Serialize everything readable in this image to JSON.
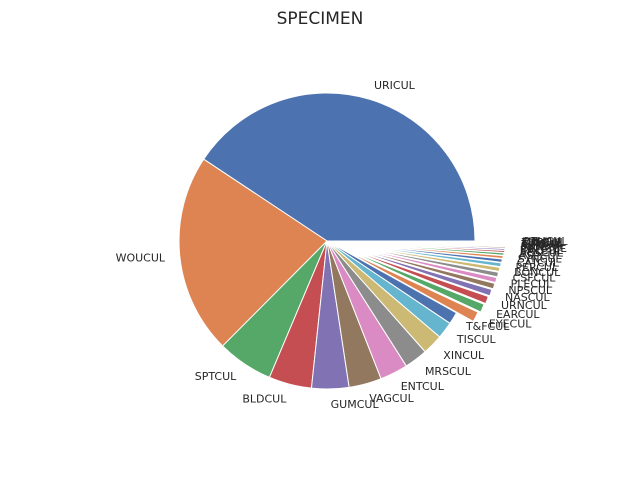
{
  "chart_data": {
    "type": "pie",
    "title": "SPECIMEN",
    "start_angle": 0,
    "direction": "counterclockwise",
    "explode_small_slices": true,
    "slices": [
      {
        "label": "URICUL",
        "value": 40.0,
        "color": "#4c72b0"
      },
      {
        "label": "WOUCUL",
        "value": 21.5,
        "color": "#dd8452"
      },
      {
        "label": "SPTCUL",
        "value": 6.0,
        "color": "#55a868"
      },
      {
        "label": "BLDCUL",
        "value": 4.6,
        "color": "#c44e52"
      },
      {
        "label": "GUMCUL",
        "value": 4.0,
        "color": "#8172b3"
      },
      {
        "label": "VAGCUL",
        "value": 3.5,
        "color": "#937860"
      },
      {
        "label": "ENTCUL",
        "value": 3.0,
        "color": "#da8bc3"
      },
      {
        "label": "MRSCUL",
        "value": 2.5,
        "color": "#8c8c8c"
      },
      {
        "label": "XINCUL",
        "value": 2.2,
        "color": "#ccb974"
      },
      {
        "label": "TISCUL",
        "value": 1.8,
        "color": "#64b5cd"
      },
      {
        "label": "T&FCUL",
        "value": 1.3,
        "color": "#4c72b0"
      },
      {
        "label": "EYECUL",
        "value": 1.1,
        "color": "#dd8452"
      },
      {
        "label": "EARCUL",
        "value": 0.9,
        "color": "#55a868"
      },
      {
        "label": "URNCUL",
        "value": 0.8,
        "color": "#c44e52"
      },
      {
        "label": "NASCUL",
        "value": 0.7,
        "color": "#8172b3"
      },
      {
        "label": "NPSCUL",
        "value": 0.6,
        "color": "#937860"
      },
      {
        "label": "PLECUL",
        "value": 0.55,
        "color": "#da8bc3"
      },
      {
        "label": "CSFCUL",
        "value": 0.5,
        "color": "#8c8c8c"
      },
      {
        "label": "BONCUL",
        "value": 0.45,
        "color": "#ccb974"
      },
      {
        "label": "PERCUL",
        "value": 0.4,
        "color": "#64b5cd"
      },
      {
        "label": "CATCUL",
        "value": 0.35,
        "color": "#4c72b0"
      },
      {
        "label": "SYNCUL",
        "value": 0.3,
        "color": "#dd8452"
      },
      {
        "label": "ASPCUL",
        "value": 0.25,
        "color": "#55a868"
      },
      {
        "label": "ABSCUL",
        "value": 0.2,
        "color": "#c44e52"
      },
      {
        "label": "BALCUL",
        "value": 0.18,
        "color": "#8172b3"
      },
      {
        "label": "DRNCUL",
        "value": 0.15,
        "color": "#937860"
      },
      {
        "label": "FLUCUL",
        "value": 0.12,
        "color": "#da8bc3"
      },
      {
        "label": "SKNCUL",
        "value": 0.1,
        "color": "#8c8c8c"
      },
      {
        "label": "TIPCUL",
        "value": 0.08,
        "color": "#ccb974"
      },
      {
        "label": "LINCUL",
        "value": 0.06,
        "color": "#64b5cd"
      },
      {
        "label": "STLCUL",
        "value": 0.05,
        "color": "#4c72b0"
      },
      {
        "label": "THRCUL",
        "value": 0.04,
        "color": "#dd8452"
      },
      {
        "label": "MISCUL",
        "value": 0.03,
        "color": "#55a868"
      },
      {
        "label": "OTHCUL",
        "value": 0.02,
        "color": "#c44e52"
      }
    ]
  }
}
